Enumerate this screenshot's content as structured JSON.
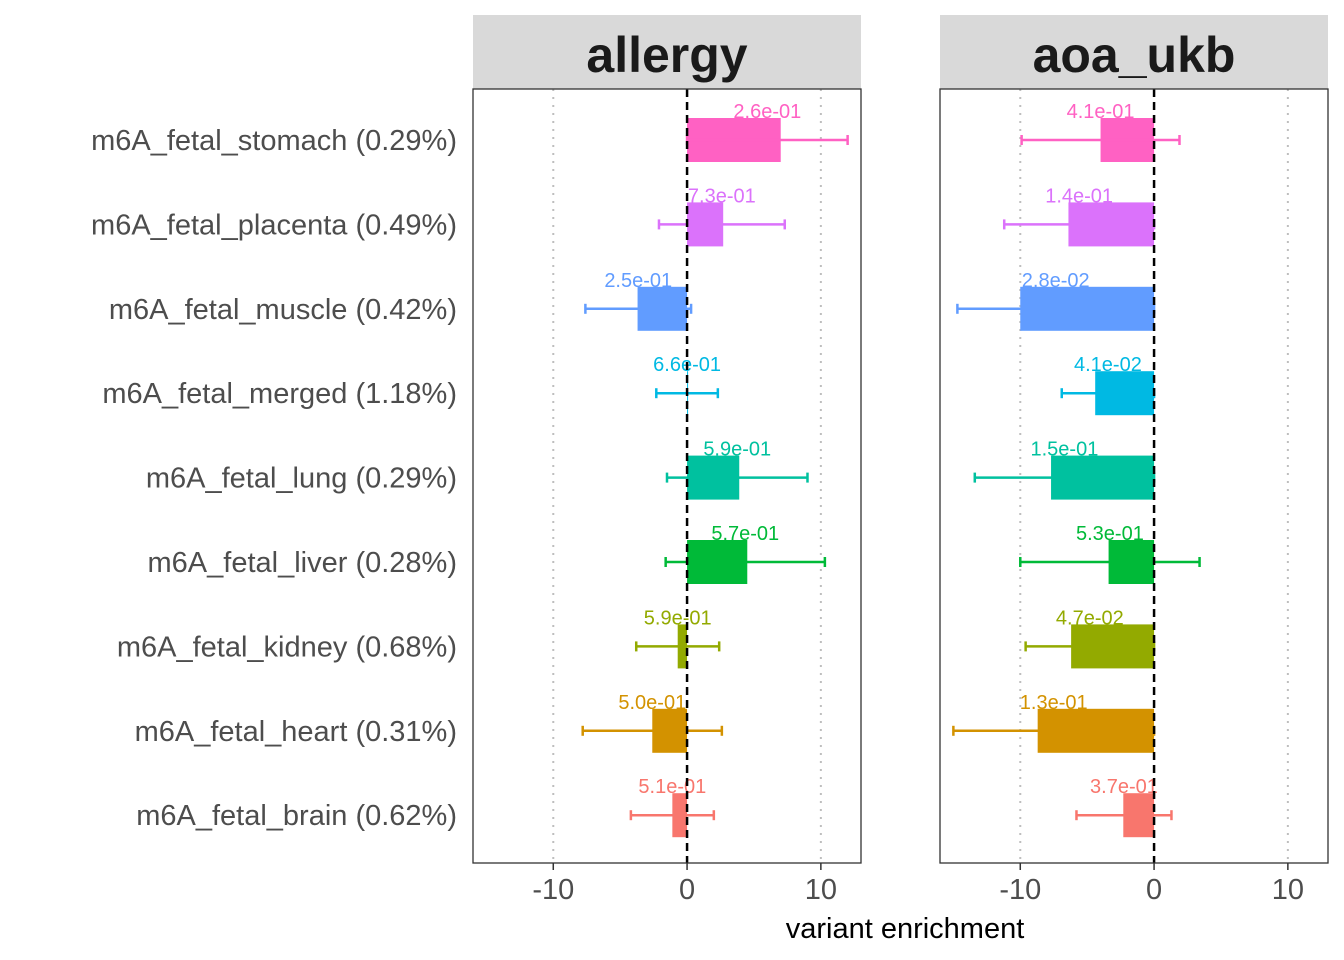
{
  "chart_data": {
    "type": "bar",
    "orientation": "horizontal",
    "xlabel": "variant enrichment",
    "xlim": [
      -16,
      13
    ],
    "xticks": [
      -10,
      0,
      10
    ],
    "xtick_labels": [
      "-10",
      "0",
      "10"
    ],
    "grid": "vertical dotted at -10 and 10",
    "reference_line": 0,
    "categories": [
      "m6A_fetal_stomach (0.29%)",
      "m6A_fetal_placenta (0.49%)",
      "m6A_fetal_muscle (0.42%)",
      "m6A_fetal_merged (1.18%)",
      "m6A_fetal_lung (0.29%)",
      "m6A_fetal_liver (0.28%)",
      "m6A_fetal_kidney (0.68%)",
      "m6A_fetal_heart (0.31%)",
      "m6A_fetal_brain (0.62%)"
    ],
    "colors": [
      "#FF61C3",
      "#DB72FB",
      "#619CFF",
      "#00B9E3",
      "#00C19F",
      "#00BA38",
      "#93AA00",
      "#D39200",
      "#F8766D"
    ],
    "panels": [
      {
        "title": "allergy",
        "values": [
          7.0,
          2.7,
          -3.7,
          0.0,
          3.9,
          4.5,
          -0.7,
          -2.6,
          -1.1
        ],
        "err_low": [
          0.0,
          -2.1,
          -7.6,
          -2.3,
          -1.5,
          -1.6,
          -3.8,
          -7.8,
          -4.2
        ],
        "err_high": [
          12.0,
          7.3,
          0.3,
          2.3,
          9.0,
          10.3,
          2.4,
          2.6,
          2.0
        ],
        "pvalues": [
          "2.6e-01",
          "7.3e-01",
          "2.5e-01",
          "6.6e-01",
          "5.9e-01",
          "5.7e-01",
          "5.9e-01",
          "5.0e-01",
          "5.1e-01"
        ]
      },
      {
        "title": "aoa_ukb",
        "values": [
          -4.0,
          -6.4,
          -10.0,
          -4.4,
          -7.7,
          -3.4,
          -6.2,
          -8.7,
          -2.3
        ],
        "err_low": [
          -9.9,
          -11.2,
          -14.7,
          -6.9,
          -13.4,
          -10.0,
          -9.6,
          -15.0,
          -5.8
        ],
        "err_high": [
          1.9,
          0.0,
          0.0,
          0.0,
          0.0,
          3.4,
          0.0,
          0.0,
          1.3
        ],
        "pvalues": [
          "4.1e-01",
          "1.4e-01",
          "2.8e-02",
          "4.1e-02",
          "1.5e-01",
          "5.3e-01",
          "4.7e-02",
          "1.3e-01",
          "3.7e-01"
        ]
      }
    ]
  }
}
